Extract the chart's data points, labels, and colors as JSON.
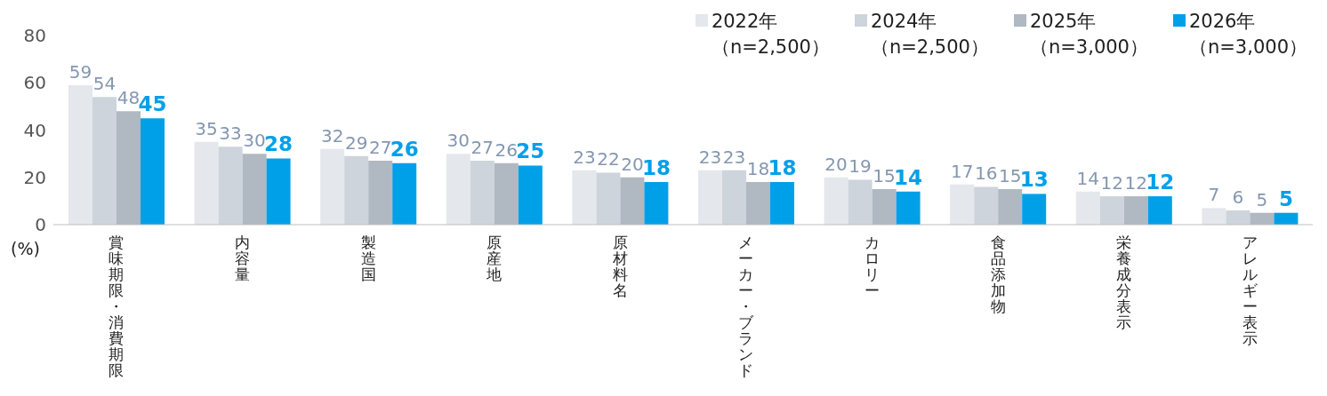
{
  "chart_data": {
    "type": "bar",
    "ylabel": "(%)",
    "categories": [
      "賞味期限・消費期限",
      "内容量",
      "製造国",
      "原産地",
      "原材料名",
      "メーカー・ブランド",
      "カロリー",
      "食品添加物",
      "栄養成分表示",
      "アレルギー表示"
    ],
    "series": [
      {
        "name": "2022年（n=2,500）",
        "color": "#e4e7ec",
        "values": [
          59,
          35,
          32,
          30,
          23,
          23,
          20,
          17,
          14,
          7
        ]
      },
      {
        "name": "2024年（n=2,500）",
        "color": "#cdd4dc",
        "values": [
          54,
          33,
          29,
          27,
          22,
          23,
          19,
          16,
          12,
          6
        ]
      },
      {
        "name": "2025年（n=3,000）",
        "color": "#b0b8c2",
        "values": [
          48,
          30,
          27,
          26,
          20,
          18,
          15,
          15,
          12,
          5
        ]
      },
      {
        "name": "2026年（n=3,000）",
        "color": "#00a0e9",
        "values": [
          45,
          28,
          26,
          25,
          18,
          18,
          14,
          13,
          12,
          5
        ]
      }
    ],
    "ylim": [
      0,
      80
    ],
    "yticks": [
      0,
      20,
      40,
      60,
      80
    ],
    "grid": false,
    "legend": "top right",
    "data_labels": true
  }
}
